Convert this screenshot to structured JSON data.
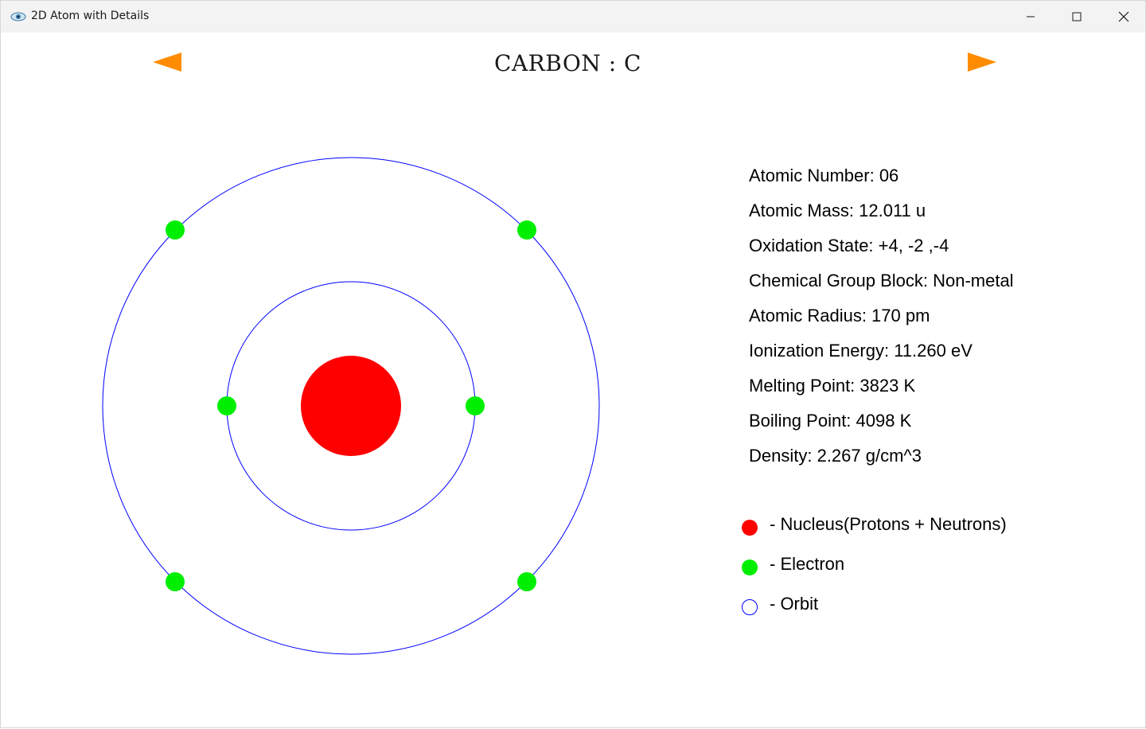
{
  "window": {
    "title": "2D Atom with Details",
    "app_icon": "app-eye-icon",
    "controls": {
      "minimize_icon": "minimize-icon",
      "maximize_icon": "maximize-icon",
      "close_icon": "close-icon"
    }
  },
  "header": {
    "element_title": "CARBON : C",
    "prev_icon": "arrow-left-icon",
    "next_icon": "arrow-right-icon",
    "arrow_color": "#ff8c00"
  },
  "atom": {
    "shells": [
      2,
      4
    ],
    "nucleus_color": "#ff0000",
    "electron_color": "#00ee00",
    "orbit_color": "#0000ff"
  },
  "details": [
    {
      "label": "Atomic Number",
      "value": "06",
      "text": "Atomic Number: 06"
    },
    {
      "label": "Atomic Mass",
      "value": "12.011 u",
      "text": "Atomic Mass: 12.011 u"
    },
    {
      "label": "Oxidation State",
      "value": "+4, -2 ,-4",
      "text": "Oxidation State: +4, -2 ,-4"
    },
    {
      "label": "Chemical Group Block",
      "value": "Non-metal",
      "text": "Chemical Group Block: Non-metal"
    },
    {
      "label": "Atomic Radius",
      "value": "170 pm",
      "text": "Atomic Radius: 170 pm"
    },
    {
      "label": "Ionization Energy",
      "value": "11.260 eV",
      "text": "Ionization Energy: 11.260 eV"
    },
    {
      "label": "Melting Point",
      "value": "3823 K",
      "text": "Melting Point: 3823 K"
    },
    {
      "label": "Boiling Point",
      "value": "4098 K",
      "text": "Boiling Point: 4098 K"
    },
    {
      "label": "Density",
      "value": "2.267 g/cm^3",
      "text": "Density: 2.267 g/cm^3"
    }
  ],
  "legend": [
    {
      "symbol": "nucleus",
      "text": "- Nucleus(Protons + Neutrons)"
    },
    {
      "symbol": "electron",
      "text": "- Electron"
    },
    {
      "symbol": "orbit",
      "text": "- Orbit"
    }
  ]
}
